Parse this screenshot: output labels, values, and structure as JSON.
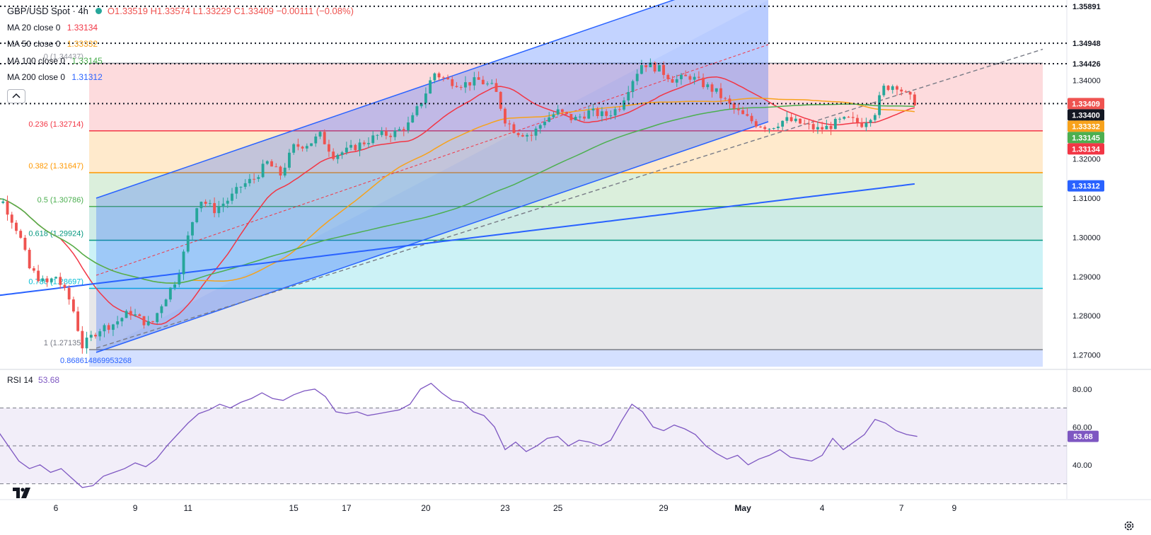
{
  "header": {
    "symbol": "GBP/USD Spot · 4h",
    "open": "O1.33519",
    "high": "H1.33574",
    "low": "L1.33229",
    "close": "C1.33409",
    "change": "−0.00111 (−0.08%)"
  },
  "indicators": [
    {
      "label": "MA 20 close 0",
      "value": "1.33134",
      "color": "#f23645"
    },
    {
      "label": "MA 50 close 0",
      "value": "1.33332",
      "color": "#f7a21b"
    },
    {
      "label": "MA 100 close 0",
      "value": "1.33145",
      "color": "#4caf50"
    },
    {
      "label": "MA 200 close 0",
      "value": "1.31312",
      "color": "#2962ff"
    }
  ],
  "rsi": {
    "label": "RSI 14",
    "value": "53.68",
    "color": "#7e57c2"
  },
  "colors": {
    "up": "#26a69a",
    "down": "#ef5350",
    "ma20": "#f23645",
    "ma50": "#f7a21b",
    "ma100": "#4caf50",
    "ma200": "#2962ff",
    "rsi": "#7e57c2",
    "channel": "#2962ff"
  },
  "icons": {
    "logo": "tradingview-logo-icon",
    "settings": "gear-icon",
    "collapse": "chevron-up-icon"
  },
  "chart_data": {
    "type": "candlestick",
    "ylim": [
      1.2665,
      1.3605
    ],
    "price_ticks": [
      "1.34000",
      "1.33000",
      "1.32000",
      "1.31000",
      "1.30000",
      "1.29000",
      "1.28000",
      "1.27000"
    ],
    "price_tick_values": [
      1.34,
      1.33,
      1.32,
      1.31,
      1.3,
      1.29,
      1.28,
      1.27
    ],
    "x_ticks": [
      {
        "label": "6",
        "day": 6
      },
      {
        "label": "9",
        "day": 9
      },
      {
        "label": "11",
        "day": 11
      },
      {
        "label": "15",
        "day": 15
      },
      {
        "label": "17",
        "day": 17
      },
      {
        "label": "20",
        "day": 20
      },
      {
        "label": "23",
        "day": 23
      },
      {
        "label": "25",
        "day": 25
      },
      {
        "label": "29",
        "day": 29
      },
      {
        "label": "May",
        "day": 32
      },
      {
        "label": "4",
        "day": 35
      },
      {
        "label": "7",
        "day": 38
      },
      {
        "label": "9",
        "day": 40
      }
    ],
    "dotted_levels": [
      {
        "value": 1.33409,
        "label": "1.33409"
      },
      {
        "value": 1.34426,
        "label": "1.34426"
      },
      {
        "value": 1.34948,
        "label": "1.34948"
      },
      {
        "value": 1.35891,
        "label": "1.35891"
      }
    ],
    "price_badges": [
      {
        "value": 1.33409,
        "label": "1.33409",
        "color": "#ef5350"
      },
      {
        "value": 1.334,
        "label": "1.33400",
        "color": "#131722"
      },
      {
        "value": 1.33332,
        "label": "1.33332",
        "color": "#f7a21b"
      },
      {
        "value": 1.33145,
        "label": "1.33145",
        "color": "#4caf50"
      },
      {
        "value": 1.33134,
        "label": "1.33134",
        "color": "#f23645"
      },
      {
        "value": 1.31312,
        "label": "1.31312",
        "color": "#2962ff"
      }
    ],
    "fibonacci": [
      {
        "ratio": "0",
        "label": "0 (1.34437)",
        "value": 1.34437,
        "color": "#9598a1"
      },
      {
        "ratio": "0.236",
        "label": "0.236 (1.32714)",
        "value": 1.32714,
        "color": "#f23645"
      },
      {
        "ratio": "0.382",
        "label": "0.382 (1.31647)",
        "value": 1.31647,
        "color": "#ff9800"
      },
      {
        "ratio": "0.5",
        "label": "0.5 (1.30786)",
        "value": 1.30786,
        "color": "#4caf50"
      },
      {
        "ratio": "0.618",
        "label": "0.618 (1.29924)",
        "value": 1.29924,
        "color": "#089981"
      },
      {
        "ratio": "0.786",
        "label": "0.786 (1.28697)",
        "value": 1.28697,
        "color": "#00bcd4"
      },
      {
        "ratio": "1",
        "label": "1 (1.27135)",
        "value": 1.27135,
        "color": "#787b86"
      }
    ],
    "fib_extension_label": "0.868614869953268",
    "rsi_ylim": [
      22,
      90
    ],
    "rsi_ticks": [
      "80.00",
      "60.00",
      "40.00"
    ],
    "rsi_tick_values": [
      80,
      60,
      40
    ],
    "rsi_band": [
      70,
      30
    ],
    "rsi_mid": 50,
    "rsi_series": [
      [
        3,
        64
      ],
      [
        3.4,
        62
      ],
      [
        3.8,
        58
      ],
      [
        4.2,
        50
      ],
      [
        4.6,
        42
      ],
      [
        5,
        38
      ],
      [
        5.4,
        40
      ],
      [
        5.8,
        36
      ],
      [
        6.2,
        38
      ],
      [
        6.6,
        33
      ],
      [
        7,
        28
      ],
      [
        7.4,
        29
      ],
      [
        7.8,
        34
      ],
      [
        8.2,
        36
      ],
      [
        8.6,
        38
      ],
      [
        9,
        41
      ],
      [
        9.4,
        39
      ],
      [
        9.8,
        43
      ],
      [
        10.2,
        50
      ],
      [
        10.6,
        56
      ],
      [
        11,
        62
      ],
      [
        11.4,
        67
      ],
      [
        11.8,
        69
      ],
      [
        12.2,
        72
      ],
      [
        12.6,
        70
      ],
      [
        13,
        73
      ],
      [
        13.4,
        75
      ],
      [
        13.8,
        78
      ],
      [
        14.2,
        75
      ],
      [
        14.6,
        74
      ],
      [
        15,
        77
      ],
      [
        15.4,
        79
      ],
      [
        15.8,
        80
      ],
      [
        16.2,
        76
      ],
      [
        16.6,
        68
      ],
      [
        17,
        67
      ],
      [
        17.4,
        68
      ],
      [
        17.8,
        66
      ],
      [
        18.2,
        67
      ],
      [
        18.6,
        68
      ],
      [
        19,
        69
      ],
      [
        19.4,
        72
      ],
      [
        19.8,
        80
      ],
      [
        20.2,
        83
      ],
      [
        20.6,
        78
      ],
      [
        21,
        74
      ],
      [
        21.4,
        73
      ],
      [
        21.8,
        68
      ],
      [
        22.2,
        66
      ],
      [
        22.6,
        60
      ],
      [
        23,
        48
      ],
      [
        23.4,
        52
      ],
      [
        23.8,
        47
      ],
      [
        24.2,
        50
      ],
      [
        24.6,
        54
      ],
      [
        25,
        55
      ],
      [
        25.4,
        50
      ],
      [
        25.8,
        53
      ],
      [
        26.2,
        52
      ],
      [
        26.6,
        50
      ],
      [
        27,
        53
      ],
      [
        27.4,
        63
      ],
      [
        27.8,
        72
      ],
      [
        28.2,
        68
      ],
      [
        28.6,
        60
      ],
      [
        29,
        58
      ],
      [
        29.4,
        61
      ],
      [
        29.8,
        59
      ],
      [
        30.2,
        56
      ],
      [
        30.6,
        50
      ],
      [
        31,
        46
      ],
      [
        31.4,
        43
      ],
      [
        31.8,
        45
      ],
      [
        32.2,
        40
      ],
      [
        32.6,
        43
      ],
      [
        33,
        45
      ],
      [
        33.4,
        48
      ],
      [
        33.8,
        44
      ],
      [
        34.2,
        43
      ],
      [
        34.6,
        42
      ],
      [
        35,
        45
      ],
      [
        35.4,
        54
      ],
      [
        35.8,
        48
      ],
      [
        36.2,
        52
      ],
      [
        36.6,
        56
      ],
      [
        37,
        64
      ],
      [
        37.4,
        62
      ],
      [
        37.8,
        58
      ],
      [
        38.2,
        56
      ],
      [
        38.6,
        55
      ]
    ]
  }
}
